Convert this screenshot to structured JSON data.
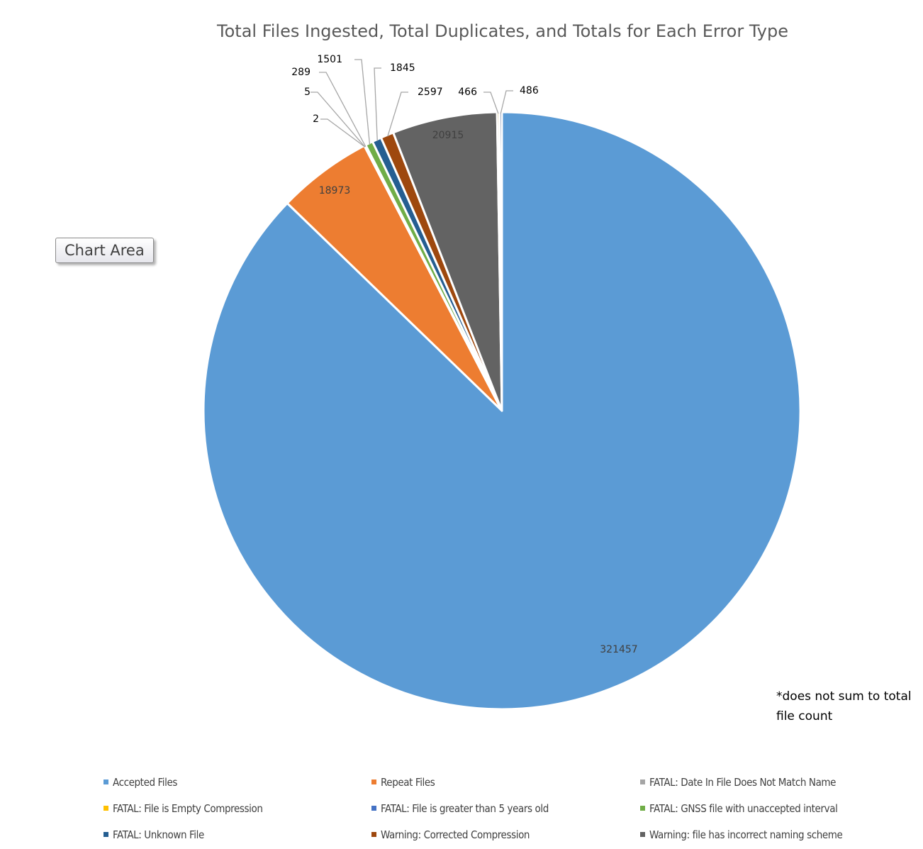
{
  "chart_data": {
    "type": "pie",
    "title": "Total Files Ingested, Total Duplicates, and Totals for Each Error Type",
    "slices": [
      {
        "label": "Accepted Files",
        "value": 321457,
        "color": "#5b9bd5",
        "data_label": "321457"
      },
      {
        "label": "Repeat Files",
        "value": 18973,
        "color": "#ed7d31",
        "data_label": "18973"
      },
      {
        "label": "FATAL: Date In File Does Not Match Name",
        "value": 2,
        "color": "#a5a5a5",
        "data_label": "2"
      },
      {
        "label": "FATAL: File is Empty Compression",
        "value": 5,
        "color": "#ffc000",
        "data_label": "5"
      },
      {
        "label": "FATAL: File is greater than 5 years old",
        "value": 289,
        "color": "#4472c4",
        "data_label": "289"
      },
      {
        "label": "FATAL: GNSS file with unaccepted interval",
        "value": 1501,
        "color": "#70ad47",
        "data_label": "1501"
      },
      {
        "label": "FATAL: Unknown File",
        "value": 1845,
        "color": "#255e91",
        "data_label": "1845"
      },
      {
        "label": "Warning: Corrected Compression",
        "value": 2597,
        "color": "#9e480e",
        "data_label": "2597"
      },
      {
        "label": "Warning: file has incorrect naming scheme",
        "value": 20915,
        "color": "#636363",
        "data_label": "20915"
      },
      {
        "label": "",
        "value": 466,
        "color": "#997300",
        "data_label": "466"
      },
      {
        "label": "",
        "value": 486,
        "color": "#264478",
        "data_label": "486"
      }
    ],
    "legend_position": "bottom",
    "start_angle": "12 o'clock, clockwise"
  },
  "overlay": {
    "tooltip": "Chart Area",
    "footnote": "*does not sum to total file count"
  }
}
